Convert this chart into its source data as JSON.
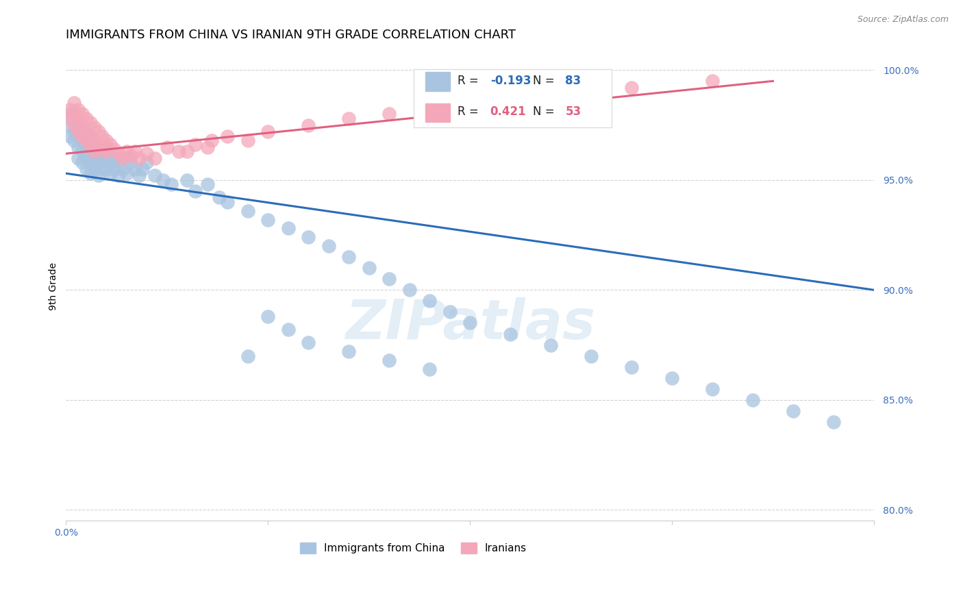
{
  "title": "IMMIGRANTS FROM CHINA VS IRANIAN 9TH GRADE CORRELATION CHART",
  "source": "Source: ZipAtlas.com",
  "ylabel_label": "9th Grade",
  "watermark": "ZIPatlas",
  "legend_china": "Immigrants from China",
  "legend_iran": "Iranians",
  "r_china": -0.193,
  "n_china": 83,
  "r_iran": 0.421,
  "n_iran": 53,
  "color_china": "#a8c4e0",
  "color_iran": "#f4a7b9",
  "line_color_china": "#2b6cb8",
  "line_color_iran": "#e06080",
  "xlim": [
    0.0,
    0.2
  ],
  "ylim": [
    0.795,
    1.008
  ],
  "xticks": [
    0.0,
    0.05,
    0.1,
    0.15,
    0.2
  ],
  "xtick_labels": [
    "0.0%",
    "",
    "",
    "",
    ""
  ],
  "yticks": [
    0.8,
    0.85,
    0.9,
    0.95,
    1.0
  ],
  "ytick_labels": [
    "80.0%",
    "85.0%",
    "90.0%",
    "95.0%",
    "100.0%"
  ],
  "china_line_x0": 0.0,
  "china_line_x1": 0.2,
  "china_line_y0": 0.953,
  "china_line_y1": 0.9,
  "iran_line_x0": 0.0,
  "iran_line_x1": 0.175,
  "iran_line_y0": 0.962,
  "iran_line_y1": 0.995,
  "background_color": "#ffffff",
  "grid_color": "#cccccc",
  "title_fontsize": 13,
  "axis_label_fontsize": 10,
  "tick_fontsize": 10,
  "legend_fontsize": 11,
  "china_x": [
    0.001,
    0.001,
    0.001,
    0.002,
    0.002,
    0.002,
    0.003,
    0.003,
    0.003,
    0.003,
    0.004,
    0.004,
    0.004,
    0.004,
    0.005,
    0.005,
    0.005,
    0.005,
    0.006,
    0.006,
    0.006,
    0.006,
    0.007,
    0.007,
    0.007,
    0.008,
    0.008,
    0.008,
    0.009,
    0.009,
    0.01,
    0.01,
    0.01,
    0.011,
    0.011,
    0.012,
    0.012,
    0.013,
    0.013,
    0.014,
    0.015,
    0.015,
    0.016,
    0.017,
    0.018,
    0.019,
    0.02,
    0.022,
    0.024,
    0.026,
    0.03,
    0.032,
    0.035,
    0.038,
    0.04,
    0.045,
    0.05,
    0.055,
    0.06,
    0.065,
    0.07,
    0.075,
    0.08,
    0.085,
    0.09,
    0.095,
    0.1,
    0.11,
    0.12,
    0.13,
    0.14,
    0.15,
    0.16,
    0.17,
    0.18,
    0.19,
    0.06,
    0.07,
    0.08,
    0.09,
    0.05,
    0.055,
    0.045
  ],
  "china_y": [
    0.98,
    0.975,
    0.97,
    0.978,
    0.972,
    0.968,
    0.975,
    0.97,
    0.965,
    0.96,
    0.972,
    0.968,
    0.963,
    0.958,
    0.97,
    0.965,
    0.96,
    0.955,
    0.968,
    0.963,
    0.958,
    0.953,
    0.965,
    0.96,
    0.955,
    0.962,
    0.958,
    0.952,
    0.96,
    0.955,
    0.965,
    0.96,
    0.955,
    0.958,
    0.953,
    0.96,
    0.955,
    0.958,
    0.952,
    0.955,
    0.96,
    0.953,
    0.958,
    0.955,
    0.952,
    0.955,
    0.958,
    0.952,
    0.95,
    0.948,
    0.95,
    0.945,
    0.948,
    0.942,
    0.94,
    0.936,
    0.932,
    0.928,
    0.924,
    0.92,
    0.915,
    0.91,
    0.905,
    0.9,
    0.895,
    0.89,
    0.885,
    0.88,
    0.875,
    0.87,
    0.865,
    0.86,
    0.855,
    0.85,
    0.845,
    0.84,
    0.876,
    0.872,
    0.868,
    0.864,
    0.888,
    0.882,
    0.87
  ],
  "iran_x": [
    0.001,
    0.001,
    0.002,
    0.002,
    0.002,
    0.003,
    0.003,
    0.003,
    0.004,
    0.004,
    0.004,
    0.005,
    0.005,
    0.005,
    0.006,
    0.006,
    0.006,
    0.007,
    0.007,
    0.007,
    0.008,
    0.008,
    0.009,
    0.009,
    0.01,
    0.01,
    0.011,
    0.012,
    0.013,
    0.014,
    0.015,
    0.016,
    0.017,
    0.018,
    0.02,
    0.022,
    0.025,
    0.028,
    0.032,
    0.036,
    0.04,
    0.05,
    0.06,
    0.07,
    0.08,
    0.09,
    0.1,
    0.12,
    0.14,
    0.16,
    0.03,
    0.035,
    0.045
  ],
  "iran_y": [
    0.982,
    0.978,
    0.985,
    0.98,
    0.975,
    0.982,
    0.978,
    0.972,
    0.98,
    0.975,
    0.97,
    0.978,
    0.972,
    0.968,
    0.976,
    0.97,
    0.965,
    0.974,
    0.968,
    0.963,
    0.972,
    0.966,
    0.97,
    0.964,
    0.968,
    0.963,
    0.966,
    0.964,
    0.962,
    0.96,
    0.963,
    0.961,
    0.963,
    0.96,
    0.962,
    0.96,
    0.965,
    0.963,
    0.966,
    0.968,
    0.97,
    0.972,
    0.975,
    0.978,
    0.98,
    0.983,
    0.986,
    0.989,
    0.992,
    0.995,
    0.963,
    0.965,
    0.968
  ]
}
